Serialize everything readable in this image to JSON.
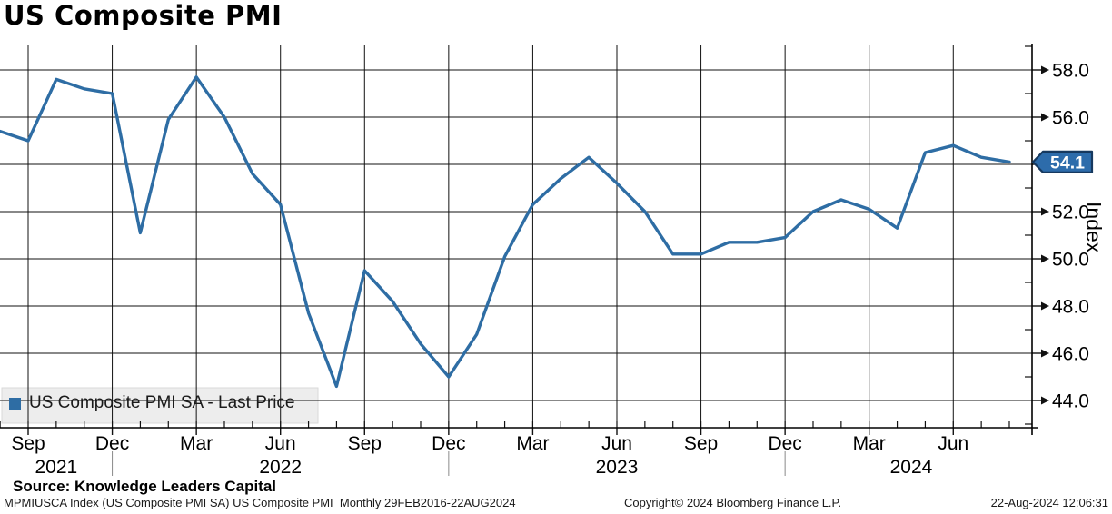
{
  "title": "US Composite PMI",
  "legend": {
    "label": "US Composite PMI SA - Last Price",
    "marker_color": "#2e6da4"
  },
  "y_axis_label": "Index",
  "last_value_badge": "54.1",
  "source_line": "Source: Knowledge Leaders Capital",
  "footer": {
    "left": "MPMIUSCA Index (US Composite PMI SA) US Composite PMI  Monthly 29FEB2016-22AUG2024",
    "center": "Copyright© 2024 Bloomberg Finance L.P.",
    "right": "22-Aug-2024 12:06:31"
  },
  "chart_data": {
    "type": "line",
    "title": "US Composite PMI",
    "series_name": "US Composite PMI SA - Last Price",
    "xlabel": "",
    "ylabel": "Index",
    "line_color": "#2e6da4",
    "grid": true,
    "legend_position": "bottom-left",
    "ylim": [
      42.9,
      59.1
    ],
    "y_major_ticks": [
      44.0,
      46.0,
      48.0,
      50.0,
      52.0,
      54.0,
      56.0,
      58.0
    ],
    "y_minor_ticks": [
      43,
      45,
      47,
      49,
      51,
      53,
      55,
      57,
      59
    ],
    "x": [
      "Aug 2021",
      "Sep 2021",
      "Oct 2021",
      "Nov 2021",
      "Dec 2021",
      "Jan 2022",
      "Feb 2022",
      "Mar 2022",
      "Apr 2022",
      "May 2022",
      "Jun 2022",
      "Jul 2022",
      "Aug 2022",
      "Sep 2022",
      "Oct 2022",
      "Nov 2022",
      "Dec 2022",
      "Jan 2023",
      "Feb 2023",
      "Mar 2023",
      "Apr 2023",
      "May 2023",
      "Jun 2023",
      "Jul 2023",
      "Aug 2023",
      "Sep 2023",
      "Oct 2023",
      "Nov 2023",
      "Dec 2023",
      "Jan 2024",
      "Feb 2024",
      "Mar 2024",
      "Apr 2024",
      "May 2024",
      "Jun 2024",
      "Jul 2024",
      "Aug 2024"
    ],
    "values": [
      55.4,
      55.0,
      57.6,
      57.2,
      57.0,
      51.1,
      55.9,
      57.7,
      56.0,
      53.6,
      52.3,
      47.7,
      44.6,
      49.5,
      48.2,
      46.4,
      45.0,
      46.8,
      50.1,
      52.3,
      53.4,
      54.3,
      53.2,
      52.0,
      50.2,
      50.2,
      50.7,
      50.7,
      50.9,
      52.0,
      52.5,
      52.1,
      51.3,
      54.5,
      54.8,
      54.3,
      54.1
    ],
    "last_value": 54.1,
    "x_major_ticks": [
      {
        "index": 1,
        "label": "Sep"
      },
      {
        "index": 4,
        "label": "Dec"
      },
      {
        "index": 7,
        "label": "Mar"
      },
      {
        "index": 10,
        "label": "Jun"
      },
      {
        "index": 13,
        "label": "Sep"
      },
      {
        "index": 16,
        "label": "Dec"
      },
      {
        "index": 19,
        "label": "Mar"
      },
      {
        "index": 22,
        "label": "Jun"
      },
      {
        "index": 25,
        "label": "Sep"
      },
      {
        "index": 28,
        "label": "Dec"
      },
      {
        "index": 31,
        "label": "Mar"
      },
      {
        "index": 34,
        "label": "Jun"
      }
    ],
    "x_year_labels": [
      {
        "index": 2,
        "label": "2021"
      },
      {
        "index": 10,
        "label": "2022"
      },
      {
        "index": 22,
        "label": "2023"
      },
      {
        "index": 32.5,
        "label": "2024"
      }
    ],
    "year_divider_indices": [
      4,
      16,
      28
    ],
    "badge_color": "#2d6cab",
    "badge_border_color": "#16395f"
  }
}
